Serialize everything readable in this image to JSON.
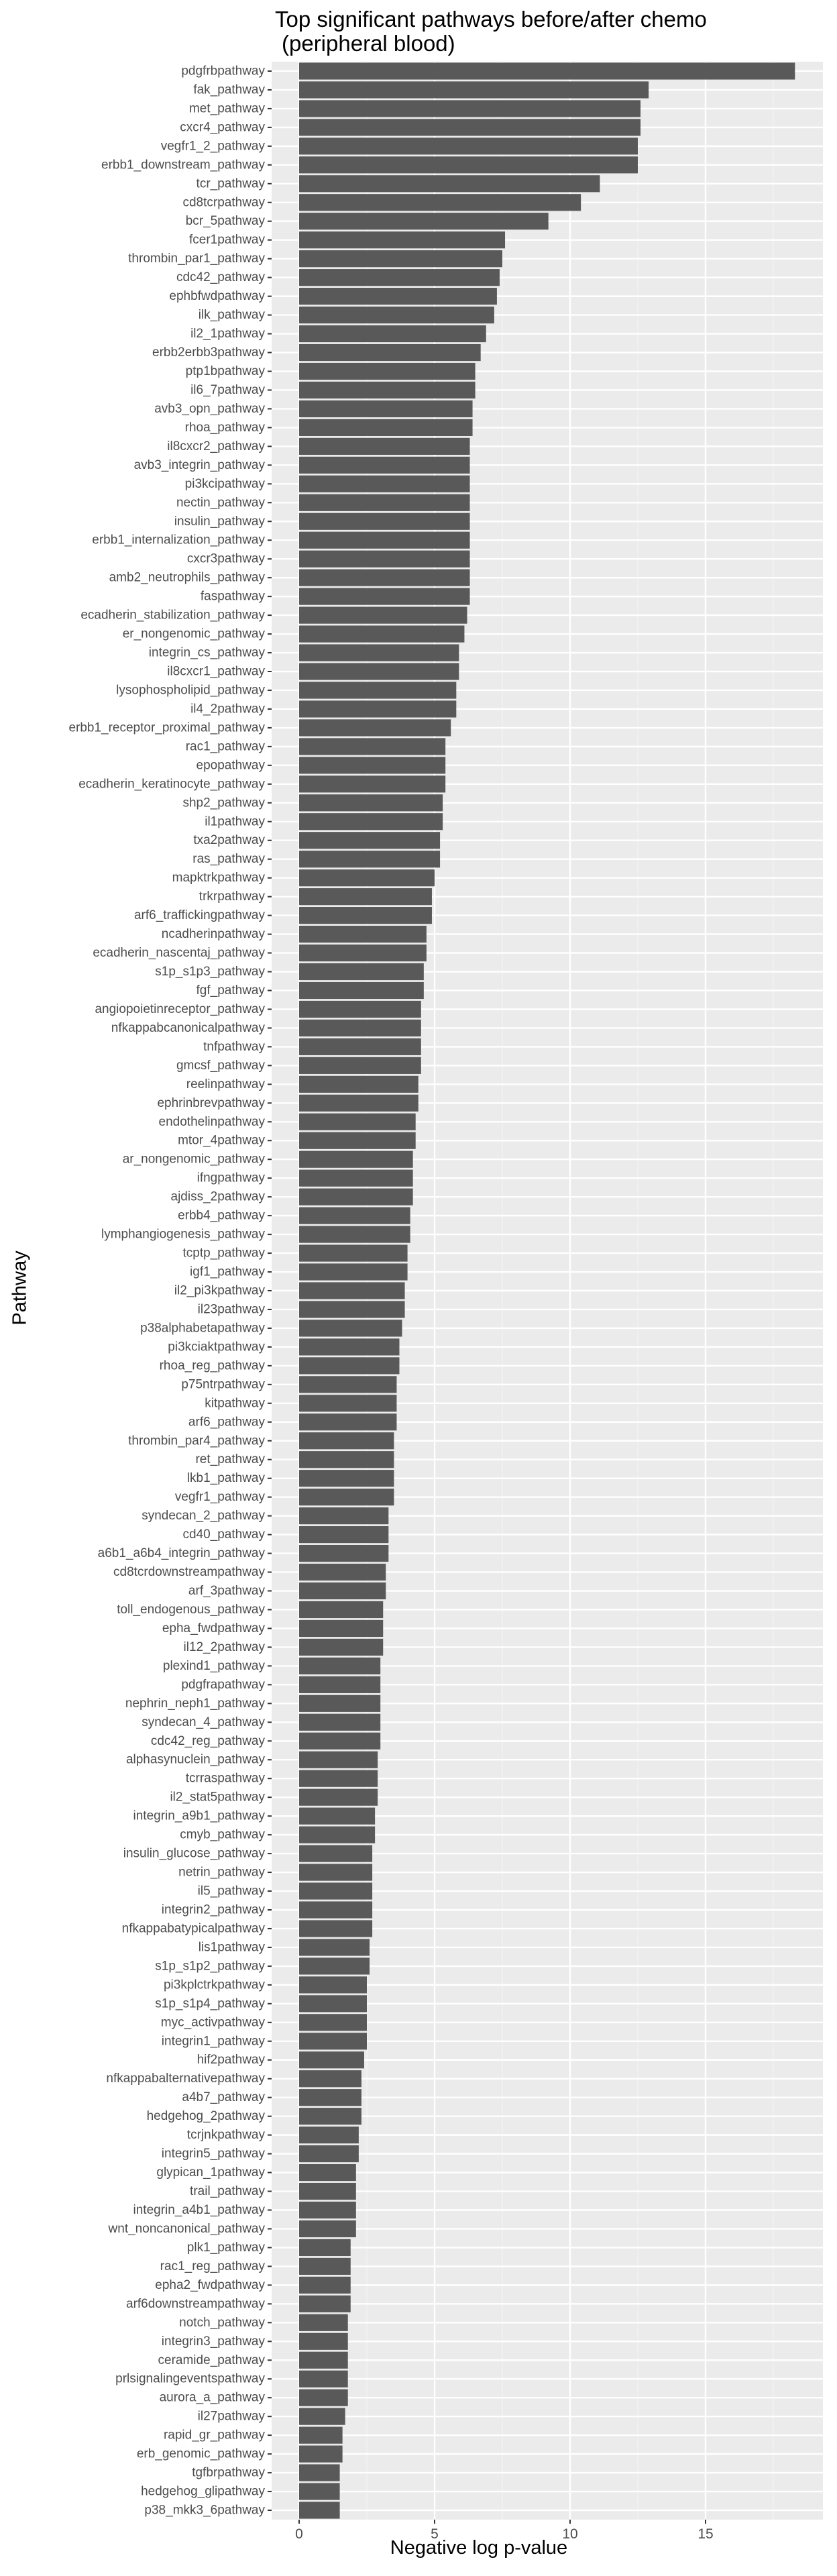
{
  "chart_data": {
    "type": "bar",
    "orientation": "horizontal",
    "title": "Top significant pathways before/after chemo\n (peripheral blood)",
    "title_lines": [
      "Top significant pathways before/after chemo",
      "(peripheral blood)"
    ],
    "xlabel": "Negative log p-value",
    "ylabel": "Pathway",
    "xlim": [
      0,
      18.5
    ],
    "x_ticks": [
      0,
      5,
      10,
      15
    ],
    "x_tick_labels": [
      "0",
      "5",
      "10",
      "15"
    ],
    "grid": true,
    "legend": "none",
    "colors": {
      "panel": "#EBEBEB",
      "grid_major": "#FFFFFF",
      "grid_minor": "#F3F3F3",
      "bar": "#595959",
      "tick_text": "#4D4D4D"
    },
    "categories": [
      "pdgfrbpathway",
      "fak_pathway",
      "met_pathway",
      "cxcr4_pathway",
      "vegfr1_2_pathway",
      "erbb1_downstream_pathway",
      "tcr_pathway",
      "cd8tcrpathway",
      "bcr_5pathway",
      "fcer1pathway",
      "thrombin_par1_pathway",
      "cdc42_pathway",
      "ephbfwdpathway",
      "ilk_pathway",
      "il2_1pathway",
      "erbb2erbb3pathway",
      "ptp1bpathway",
      "il6_7pathway",
      "avb3_opn_pathway",
      "rhoa_pathway",
      "il8cxcr2_pathway",
      "avb3_integrin_pathway",
      "pi3kcipathway",
      "nectin_pathway",
      "insulin_pathway",
      "erbb1_internalization_pathway",
      "cxcr3pathway",
      "amb2_neutrophils_pathway",
      "faspathway",
      "ecadherin_stabilization_pathway",
      "er_nongenomic_pathway",
      "integrin_cs_pathway",
      "il8cxcr1_pathway",
      "lysophospholipid_pathway",
      "il4_2pathway",
      "erbb1_receptor_proximal_pathway",
      "rac1_pathway",
      "epopathway",
      "ecadherin_keratinocyte_pathway",
      "shp2_pathway",
      "il1pathway",
      "txa2pathway",
      "ras_pathway",
      "mapktrkpathway",
      "trkrpathway",
      "arf6_traffickingpathway",
      "ncadherinpathway",
      "ecadherin_nascentaj_pathway",
      "s1p_s1p3_pathway",
      "fgf_pathway",
      "angiopoietinreceptor_pathway",
      "nfkappabcanonicalpathway",
      "tnfpathway",
      "gmcsf_pathway",
      "reelinpathway",
      "ephrinbrevpathway",
      "endothelinpathway",
      "mtor_4pathway",
      "ar_nongenomic_pathway",
      "ifngpathway",
      "ajdiss_2pathway",
      "erbb4_pathway",
      "lymphangiogenesis_pathway",
      "tcptp_pathway",
      "igf1_pathway",
      "il2_pi3kpathway",
      "il23pathway",
      "p38alphabetapathway",
      "pi3kciaktpathway",
      "rhoa_reg_pathway",
      "p75ntrpathway",
      "kitpathway",
      "arf6_pathway",
      "thrombin_par4_pathway",
      "ret_pathway",
      "lkb1_pathway",
      "vegfr1_pathway",
      "syndecan_2_pathway",
      "cd40_pathway",
      "a6b1_a6b4_integrin_pathway",
      "cd8tcrdownstreampathway",
      "arf_3pathway",
      "toll_endogenous_pathway",
      "epha_fwdpathway",
      "il12_2pathway",
      "plexind1_pathway",
      "pdgfrapathway",
      "nephrin_neph1_pathway",
      "syndecan_4_pathway",
      "cdc42_reg_pathway",
      "alphasynuclein_pathway",
      "tcrraspathway",
      "il2_stat5pathway",
      "integrin_a9b1_pathway",
      "cmyb_pathway",
      "insulin_glucose_pathway",
      "netrin_pathway",
      "il5_pathway",
      "integrin2_pathway",
      "nfkappabatypicalpathway",
      "lis1pathway",
      "s1p_s1p2_pathway",
      "pi3kplctrkpathway",
      "s1p_s1p4_pathway",
      "myc_activpathway",
      "integrin1_pathway",
      "hif2pathway",
      "nfkappabalternativepathway",
      "a4b7_pathway",
      "hedgehog_2pathway",
      "tcrjnkpathway",
      "integrin5_pathway",
      "glypican_1pathway",
      "trail_pathway",
      "integrin_a4b1_pathway",
      "wnt_noncanonical_pathway",
      "plk1_pathway",
      "rac1_reg_pathway",
      "epha2_fwdpathway",
      "arf6downstreampathway",
      "notch_pathway",
      "integrin3_pathway",
      "ceramide_pathway",
      "prlsignalingeventspathway",
      "aurora_a_pathway",
      "il27pathway",
      "rapid_gr_pathway",
      "erb_genomic_pathway",
      "tgfbrpathway",
      "hedgehog_glipathway",
      "p38_mkk3_6pathway"
    ],
    "values": [
      18.3,
      12.9,
      12.6,
      12.6,
      12.5,
      12.5,
      11.1,
      10.4,
      9.2,
      7.6,
      7.5,
      7.4,
      7.3,
      7.2,
      6.9,
      6.7,
      6.5,
      6.5,
      6.4,
      6.4,
      6.3,
      6.3,
      6.3,
      6.3,
      6.3,
      6.3,
      6.3,
      6.3,
      6.3,
      6.2,
      6.1,
      5.9,
      5.9,
      5.8,
      5.8,
      5.6,
      5.4,
      5.4,
      5.4,
      5.3,
      5.3,
      5.2,
      5.2,
      5.0,
      4.9,
      4.9,
      4.7,
      4.7,
      4.6,
      4.6,
      4.5,
      4.5,
      4.5,
      4.5,
      4.4,
      4.4,
      4.3,
      4.3,
      4.2,
      4.2,
      4.2,
      4.1,
      4.1,
      4.0,
      4.0,
      3.9,
      3.9,
      3.8,
      3.7,
      3.7,
      3.6,
      3.6,
      3.6,
      3.5,
      3.5,
      3.5,
      3.5,
      3.3,
      3.3,
      3.3,
      3.2,
      3.2,
      3.1,
      3.1,
      3.1,
      3.0,
      3.0,
      3.0,
      3.0,
      3.0,
      2.9,
      2.9,
      2.9,
      2.8,
      2.8,
      2.7,
      2.7,
      2.7,
      2.7,
      2.7,
      2.6,
      2.6,
      2.5,
      2.5,
      2.5,
      2.5,
      2.4,
      2.3,
      2.3,
      2.3,
      2.2,
      2.2,
      2.1,
      2.1,
      2.1,
      2.1,
      1.9,
      1.9,
      1.9,
      1.9,
      1.8,
      1.8,
      1.8,
      1.8,
      1.8,
      1.7,
      1.6,
      1.6,
      1.5,
      1.5,
      1.5
    ]
  }
}
